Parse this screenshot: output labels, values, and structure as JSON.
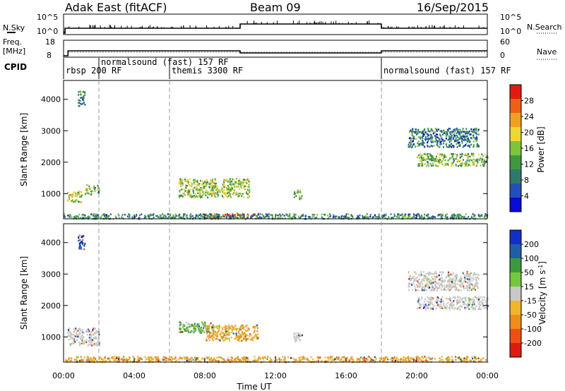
{
  "header": {
    "radar": "Adak East (fitACF)",
    "beam": "Beam 09",
    "date": "16/Sep/2015"
  },
  "chart_data": [
    {
      "type": "line",
      "panel": "noise",
      "left_label": "N.Sky",
      "right_label": "N.Search",
      "y_ticks_left": [
        "10^5",
        "10^0"
      ],
      "y_ticks_right": [
        "10^5",
        "10^0"
      ],
      "segments": [
        {
          "x_start": "00:00",
          "x_end": "00:05",
          "level": "low"
        },
        {
          "x_start": "00:05",
          "x_end": "10:00",
          "level": "mid"
        },
        {
          "x_start": "10:00",
          "x_end": "18:00",
          "level": "high"
        },
        {
          "x_start": "18:00",
          "x_end": "24:00",
          "level": "mid"
        }
      ]
    },
    {
      "type": "line",
      "panel": "frequency",
      "left_label_1": "Freq.",
      "left_label_2": "[MHz]",
      "right_label": "Nave",
      "y_ticks_left": [
        "18",
        "8"
      ],
      "y_ticks_right": [
        "60",
        "0"
      ],
      "segments": [
        {
          "x_start": "00:00",
          "x_end": "00:15",
          "freq": 9
        },
        {
          "x_start": "00:15",
          "x_end": "10:00",
          "freq": 12.5
        },
        {
          "x_start": "10:00",
          "x_end": "18:00",
          "freq": 11
        },
        {
          "x_start": "18:00",
          "x_end": "24:00",
          "freq": 12.5
        }
      ]
    },
    {
      "type": "table",
      "panel": "cpid",
      "label": "CPID",
      "entries": [
        {
          "x": "00:00",
          "text": "rbsp 200 RF"
        },
        {
          "x": "02:00",
          "text": "normalsound (fast) 157 RF"
        },
        {
          "x": "06:00",
          "text": "themis 3300 RF"
        },
        {
          "x": "18:00",
          "text": "normalsound (fast) 157 RF"
        }
      ]
    },
    {
      "type": "heatmap",
      "panel": "power",
      "ylabel": "Slant Range [km]",
      "ylim": [
        200,
        4600
      ],
      "yticks": [
        1000,
        2000,
        3000,
        4000
      ],
      "xlim": [
        0,
        24
      ],
      "colorbar_label": "Power [dB]",
      "colorbar_ticks": [
        "4",
        "8",
        "12",
        "16",
        "20",
        "24",
        "28"
      ],
      "colors": [
        "#0a0ad8",
        "#2050b8",
        "#2e7a6a",
        "#3d9a40",
        "#7cc63c",
        "#ecd830",
        "#f2a020",
        "#ee6018",
        "#e21a10"
      ],
      "regions": [
        {
          "x": [
            0.2,
            1.0
          ],
          "y": [
            750,
            1100
          ],
          "level": 0.55
        },
        {
          "x": [
            1.2,
            2.0
          ],
          "y": [
            1000,
            1300
          ],
          "level": 0.4
        },
        {
          "x": [
            0.8,
            1.2
          ],
          "y": [
            3800,
            4300
          ],
          "level": 0.3
        },
        {
          "x": [
            6.5,
            10.5
          ],
          "y": [
            900,
            1500
          ],
          "level": 0.5
        },
        {
          "x": [
            13.0,
            13.5
          ],
          "y": [
            850,
            1150
          ],
          "level": 0.4
        },
        {
          "x": [
            8.0,
            11.0
          ],
          "y": [
            250,
            400
          ],
          "level": 0.85
        },
        {
          "x": [
            0.0,
            24.0
          ],
          "y": [
            220,
            380
          ],
          "level": 0.3
        },
        {
          "x": [
            20.0,
            24.0
          ],
          "y": [
            1900,
            2300
          ],
          "level": 0.45
        },
        {
          "x": [
            19.5,
            23.5
          ],
          "y": [
            2500,
            3100
          ],
          "level": 0.25
        }
      ]
    },
    {
      "type": "heatmap",
      "panel": "velocity",
      "ylabel": "Slant Range [km]",
      "ylim": [
        200,
        4600
      ],
      "yticks": [
        1000,
        2000,
        3000,
        4000
      ],
      "xlim": [
        0,
        24
      ],
      "xlabel": "Time UT",
      "xticks": [
        "00:00",
        "04:00",
        "08:00",
        "12:00",
        "16:00",
        "20:00",
        "00:00"
      ],
      "colorbar_label": "Velocity [m s",
      "colorbar_sup": "-1",
      "colorbar_ticks": [
        "200",
        "100",
        "50",
        "15",
        "-15",
        "-50",
        "-100",
        "-200"
      ],
      "colors": [
        "#1030c8",
        "#205ea8",
        "#3c9a3c",
        "#74c83c",
        "#c8c8c8",
        "#f2b428",
        "#f08c18",
        "#ee5014",
        "#e01a10"
      ],
      "regions": [
        {
          "x": [
            0.2,
            2.0
          ],
          "y": [
            750,
            1300
          ],
          "level": "ground"
        },
        {
          "x": [
            0.8,
            1.2
          ],
          "y": [
            3800,
            4300
          ],
          "level": "toward"
        },
        {
          "x": [
            6.5,
            8.5
          ],
          "y": [
            1150,
            1500
          ],
          "level": "green"
        },
        {
          "x": [
            8.0,
            11.0
          ],
          "y": [
            900,
            1400
          ],
          "level": "orange"
        },
        {
          "x": [
            13.0,
            13.5
          ],
          "y": [
            850,
            1150
          ],
          "level": "ground"
        },
        {
          "x": [
            0.0,
            24.0
          ],
          "y": [
            220,
            400
          ],
          "level": "orange"
        },
        {
          "x": [
            20.0,
            24.0
          ],
          "y": [
            1900,
            2300
          ],
          "level": "ground"
        },
        {
          "x": [
            19.5,
            23.5
          ],
          "y": [
            2500,
            3100
          ],
          "level": "ground"
        }
      ]
    }
  ]
}
